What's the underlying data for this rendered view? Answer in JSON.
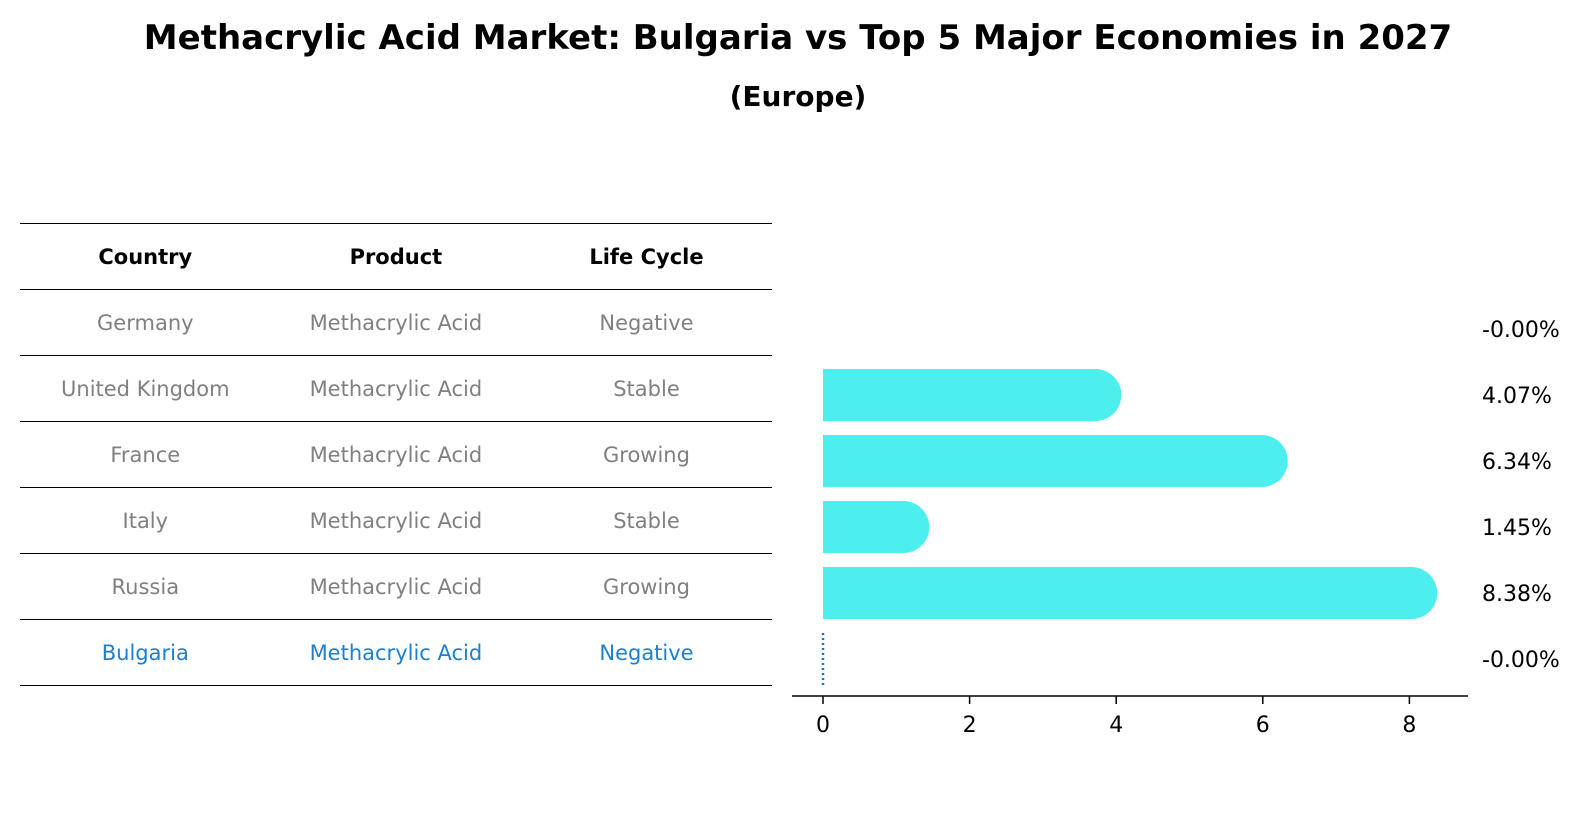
{
  "title": "Methacrylic Acid Market: Bulgaria vs Top 5 Major Economies in 2027",
  "subtitle": "(Europe)",
  "table": {
    "headers": [
      "Country",
      "Product",
      "Life Cycle"
    ],
    "rows": [
      [
        "Germany",
        "Methacrylic Acid",
        "Negative"
      ],
      [
        "United Kingdom",
        "Methacrylic Acid",
        "Stable"
      ],
      [
        "France",
        "Methacrylic Acid",
        "Growing"
      ],
      [
        "Italy",
        "Methacrylic Acid",
        "Stable"
      ],
      [
        "Russia",
        "Methacrylic Acid",
        "Growing"
      ],
      [
        "Bulgaria",
        "Methacrylic Acid",
        "Negative"
      ]
    ],
    "highlight_row": 5
  },
  "chart_data": {
    "type": "bar",
    "orientation": "horizontal",
    "categories": [
      "Germany",
      "United Kingdom",
      "France",
      "Italy",
      "Russia",
      "Bulgaria"
    ],
    "values": [
      -0.0,
      4.07,
      6.34,
      1.45,
      8.38,
      -0.0
    ],
    "value_labels": [
      "-0.00%",
      "4.07%",
      "6.34%",
      "1.45%",
      "8.38%",
      "-0.00%"
    ],
    "xticks": [
      0,
      2,
      4,
      6,
      8
    ],
    "xlim": [
      -0.45,
      8.8
    ],
    "bar_color": "#4ceeee",
    "highlight_color": "#1f77b4"
  }
}
